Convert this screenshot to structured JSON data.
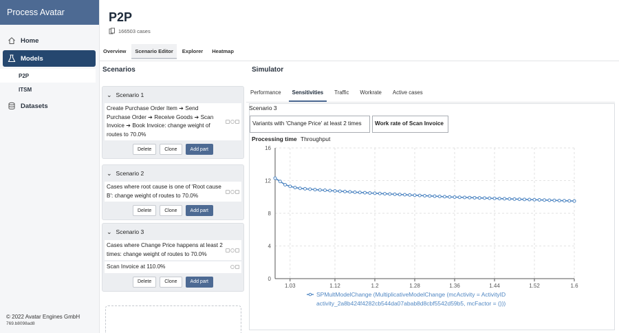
{
  "app": {
    "title": "Process Avatar"
  },
  "sidebar": {
    "items": [
      {
        "label": "Home",
        "icon": "home-icon"
      },
      {
        "label": "Models",
        "icon": "flask-icon"
      },
      {
        "label": "Datasets",
        "icon": "database-icon"
      }
    ],
    "models_sub": [
      {
        "label": "P2P"
      },
      {
        "label": "ITSM"
      }
    ],
    "footer": {
      "copyright": "© 2022 Avatar Engines GmbH",
      "version": "769.b8098ad8"
    }
  },
  "header": {
    "title": "P2P",
    "cases": "166503 cases",
    "tabs": [
      {
        "label": "Overview"
      },
      {
        "label": "Scenario Editor"
      },
      {
        "label": "Explorer"
      },
      {
        "label": "Heatmap"
      }
    ],
    "active_tab": "Scenario Editor"
  },
  "scenarios": {
    "title": "Scenarios",
    "buttons": {
      "delete": "Delete",
      "clone": "Clone",
      "add_part": "Add part"
    },
    "list": [
      {
        "name": "Scenario 1",
        "parts": [
          "Create Purchase Order Item ➔ Send Purchase Order ➔ Receive Goods ➔ Scan Invoice ➔ Book Invoice: change weight of routes to 70.0%"
        ]
      },
      {
        "name": "Scenario 2",
        "parts": [
          "Cases where root cause is one of 'Root cause B': change weight of routes to 70.0%"
        ]
      },
      {
        "name": "Scenario 3",
        "parts": [
          "Cases where Change Price happens at least 2 times: change weight of routes to 70.0%",
          "Scan Invoice at 110.0%"
        ]
      }
    ]
  },
  "simulator": {
    "title": "Simulator",
    "tabs": [
      {
        "label": "Performance"
      },
      {
        "label": "Sensitivities"
      },
      {
        "label": "Traffic"
      },
      {
        "label": "Workrate"
      },
      {
        "label": "Active cases"
      }
    ],
    "active_tab": "Sensitivities",
    "scenario_label": "Scenario 3",
    "objects": [
      "Variants with 'Change Price' at least 2 times",
      "Work rate of Scan Invoice"
    ],
    "metric_tabs": {
      "active": "Processing time",
      "other": "Throughput"
    }
  },
  "chart_data": {
    "type": "line",
    "title": "",
    "xlabel": "",
    "ylabel": "",
    "xlim": [
      1.0,
      1.6
    ],
    "ylim": [
      0,
      16
    ],
    "xticks": [
      "1.03",
      "1.12",
      "1.2",
      "1.28",
      "1.36",
      "1.44",
      "1.52",
      "1.6"
    ],
    "xtick_values": [
      1.03,
      1.12,
      1.2,
      1.28,
      1.36,
      1.44,
      1.52,
      1.6
    ],
    "yticks": [
      0,
      4,
      8,
      12,
      16
    ],
    "grid": true,
    "legend_placement": "bottom",
    "colors": {
      "series": "#4f86c2",
      "grid": "#e2e2e2",
      "axis": "#555555"
    },
    "series": [
      {
        "name": "SPMultModelChange (MultiplicativeModelChange (mcActivity = ActivityID activity_2a8b424f4282cb544da07abab8d8cbf5542d59b5, mcFactor = ()))",
        "x": [
          1.0,
          1.01,
          1.02,
          1.03,
          1.04,
          1.05,
          1.06,
          1.07,
          1.08,
          1.09,
          1.1,
          1.11,
          1.12,
          1.13,
          1.14,
          1.15,
          1.16,
          1.17,
          1.18,
          1.19,
          1.2,
          1.21,
          1.22,
          1.23,
          1.24,
          1.25,
          1.26,
          1.27,
          1.28,
          1.29,
          1.3,
          1.31,
          1.32,
          1.33,
          1.34,
          1.35,
          1.36,
          1.37,
          1.38,
          1.39,
          1.4,
          1.41,
          1.42,
          1.43,
          1.44,
          1.45,
          1.46,
          1.47,
          1.48,
          1.49,
          1.5,
          1.51,
          1.52,
          1.53,
          1.54,
          1.55,
          1.56,
          1.57,
          1.58,
          1.59,
          1.6
        ],
        "values": [
          12.3,
          11.9,
          11.5,
          11.3,
          11.15,
          11.05,
          11.0,
          10.95,
          10.9,
          10.85,
          10.82,
          10.78,
          10.74,
          10.7,
          10.66,
          10.62,
          10.58,
          10.55,
          10.52,
          10.48,
          10.45,
          10.42,
          10.39,
          10.36,
          10.33,
          10.3,
          10.27,
          10.24,
          10.21,
          10.18,
          10.15,
          10.12,
          10.09,
          10.06,
          10.03,
          10.0,
          9.98,
          9.96,
          9.94,
          9.92,
          9.9,
          9.88,
          9.86,
          9.84,
          9.82,
          9.8,
          9.78,
          9.76,
          9.74,
          9.72,
          9.7,
          9.68,
          9.66,
          9.64,
          9.62,
          9.6,
          9.58,
          9.56,
          9.54,
          9.52,
          9.5
        ]
      }
    ]
  }
}
